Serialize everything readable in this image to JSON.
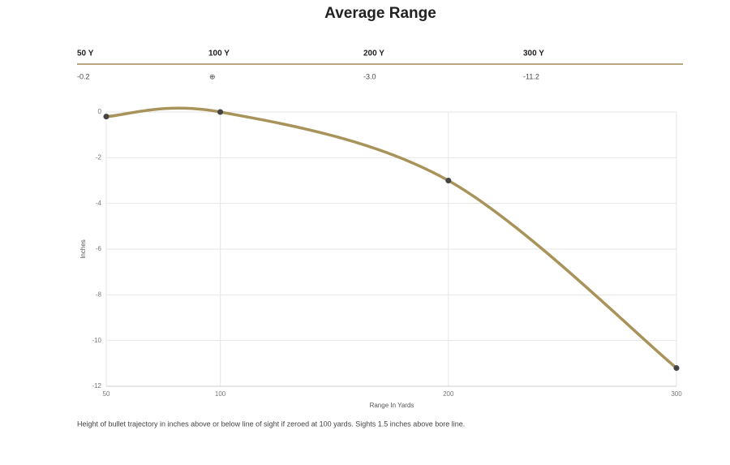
{
  "header": {
    "title": "Average Range"
  },
  "table": {
    "headers": [
      "50 Y",
      "100 Y",
      "200 Y",
      "300 Y"
    ],
    "rows": [
      [
        "-0.2",
        "⊕",
        "-3.0",
        "-11.2"
      ]
    ]
  },
  "chart_data": {
    "type": "line",
    "x": [
      50,
      100,
      200,
      300
    ],
    "values": [
      -0.2,
      0,
      -3.0,
      -11.2
    ],
    "color": "#a8935a",
    "marker_color": "#444444",
    "xlim": [
      50,
      300
    ],
    "xticks": [
      50,
      100,
      200,
      300
    ],
    "ylim": [
      -12,
      0
    ],
    "yticks": [
      0,
      -2,
      -4,
      -6,
      -8,
      -10,
      -12
    ],
    "xlabel": "Range In Yards",
    "ylabel": "Inches",
    "grid": true
  },
  "footnote": "Height of bullet trajectory in inches above or below line of sight if zeroed at 100 yards. Sights 1.5 inches above bore line."
}
